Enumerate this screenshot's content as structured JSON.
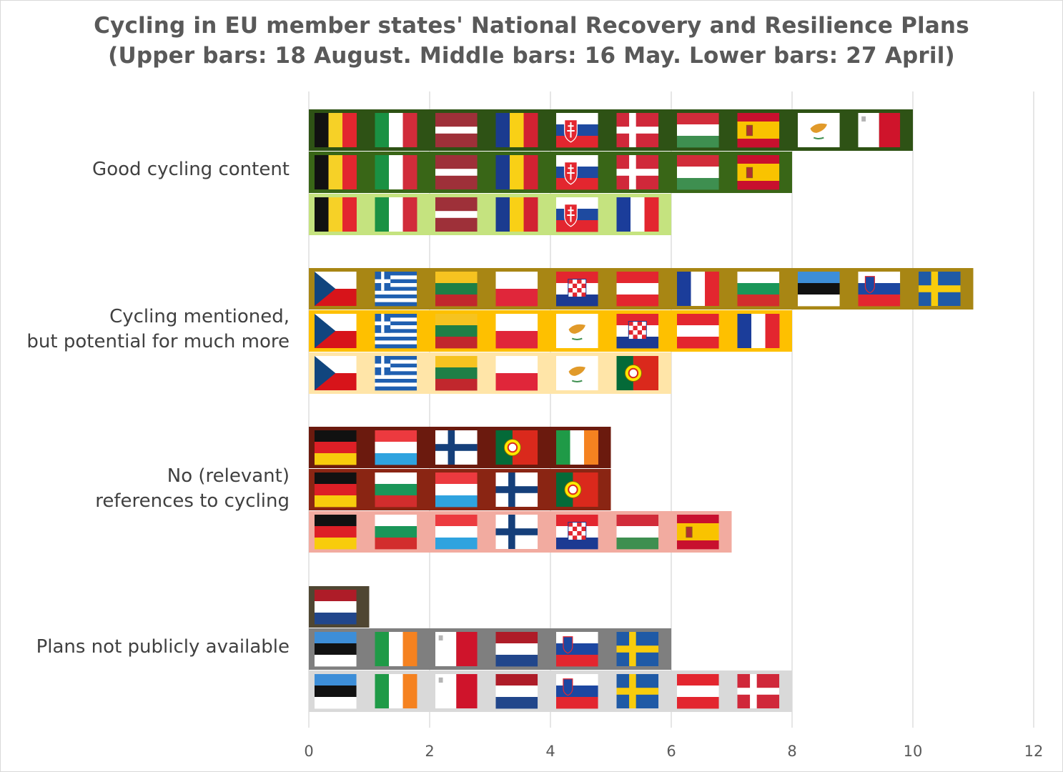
{
  "chart_data": {
    "type": "bar",
    "orientation": "horizontal",
    "title": "Cycling in EU member states' National Recovery and Resilience Plans",
    "subtitle": "(Upper bars: 18 August. Middle bars: 16 May. Lower bars: 27 April)",
    "xlabel": "",
    "ylabel": "",
    "xlim": [
      0,
      12
    ],
    "xticks": [
      0,
      2,
      4,
      6,
      8,
      10,
      12
    ],
    "grid": "vertical",
    "categories": [
      {
        "label": [
          "Good cycling content"
        ],
        "bars": [
          {
            "date": "18 August",
            "value": 10,
            "color": "#2e5215",
            "flags": [
              "BE",
              "IT",
              "LV",
              "RO",
              "SK",
              "DK",
              "HU",
              "ES",
              "CY",
              "MT"
            ]
          },
          {
            "date": "16 May",
            "value": 8,
            "color": "#396617",
            "flags": [
              "BE",
              "IT",
              "LV",
              "RO",
              "SK",
              "DK",
              "HU",
              "ES"
            ]
          },
          {
            "date": "27 April",
            "value": 6,
            "color": "#c5e37f",
            "flags": [
              "BE",
              "IT",
              "LV",
              "RO",
              "SK",
              "FR"
            ]
          }
        ]
      },
      {
        "label": [
          "Cycling mentioned,",
          "but potential for much more"
        ],
        "bars": [
          {
            "date": "18 August",
            "value": 11,
            "color": "#a88614",
            "flags": [
              "CZ",
              "GR",
              "LT",
              "PL",
              "HR",
              "AT",
              "FR",
              "BG",
              "EE",
              "SI",
              "SE"
            ]
          },
          {
            "date": "16 May",
            "value": 8,
            "color": "#fec000",
            "flags": [
              "CZ",
              "GR",
              "LT",
              "PL",
              "CY",
              "HR",
              "AT",
              "FR"
            ]
          },
          {
            "date": "27 April",
            "value": 6,
            "color": "#ffe5a8",
            "flags": [
              "CZ",
              "GR",
              "LT",
              "PL",
              "CY",
              "PT"
            ]
          }
        ]
      },
      {
        "label": [
          "No (relevant)",
          "references to cycling"
        ],
        "bars": [
          {
            "date": "18 August",
            "value": 5,
            "color": "#6b1a0e",
            "flags": [
              "DE",
              "LU",
              "FI",
              "PT",
              "IE"
            ]
          },
          {
            "date": "16 May",
            "value": 5,
            "color": "#8a2513",
            "flags": [
              "DE",
              "BG",
              "LU",
              "FI",
              "PT"
            ]
          },
          {
            "date": "27 April",
            "value": 7,
            "color": "#f2aba0",
            "flags": [
              "DE",
              "BG",
              "LU",
              "FI",
              "HR",
              "HU",
              "ES"
            ]
          }
        ]
      },
      {
        "label": [
          "Plans not publicly available"
        ],
        "bars": [
          {
            "date": "18 August",
            "value": 1,
            "color": "#4f4632",
            "flags": [
              "NL"
            ]
          },
          {
            "date": "16 May",
            "value": 6,
            "color": "#7f7f7f",
            "flags": [
              "EE",
              "IE",
              "MT",
              "NL",
              "SI",
              "SE"
            ]
          },
          {
            "date": "27 April",
            "value": 8,
            "color": "#d9d9d9",
            "flags": [
              "EE",
              "IE",
              "MT",
              "NL",
              "SI",
              "SE",
              "AT",
              "DK"
            ]
          }
        ]
      }
    ]
  }
}
